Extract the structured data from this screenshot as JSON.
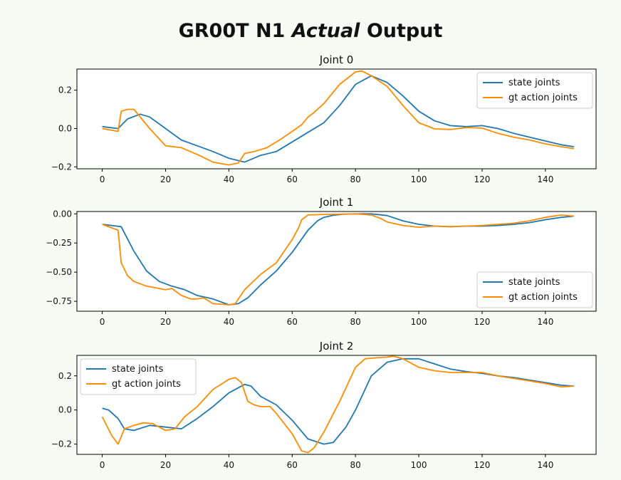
{
  "figure": {
    "title_pre": "GR00T N1 ",
    "title_ital": "Actual",
    "title_post": " Output"
  },
  "colors": {
    "state": "#1f77b4",
    "gt": "#ff8c00"
  },
  "chart_data": [
    {
      "type": "line",
      "title": "Joint 0",
      "xlim": [
        -8,
        156
      ],
      "ylim": [
        -0.21,
        0.31
      ],
      "xticks": [
        0,
        20,
        40,
        60,
        80,
        100,
        120,
        140
      ],
      "yticks": [
        0.2,
        0.0,
        -0.2
      ],
      "ytick_labels": [
        "0.2",
        "0.0",
        "−0.2"
      ],
      "legend": "top-right",
      "series": [
        {
          "name": "state joints",
          "x": [
            0,
            5,
            8,
            12,
            15,
            20,
            25,
            30,
            35,
            40,
            45,
            50,
            55,
            60,
            65,
            70,
            75,
            80,
            85,
            90,
            95,
            100,
            105,
            110,
            115,
            120,
            125,
            130,
            135,
            140,
            145,
            149
          ],
          "values": [
            0.01,
            0.0,
            0.05,
            0.075,
            0.06,
            0.0,
            -0.06,
            -0.09,
            -0.12,
            -0.155,
            -0.175,
            -0.14,
            -0.12,
            -0.07,
            -0.02,
            0.03,
            0.12,
            0.23,
            0.275,
            0.24,
            0.17,
            0.09,
            0.04,
            0.015,
            0.01,
            0.015,
            0.0,
            -0.025,
            -0.045,
            -0.065,
            -0.085,
            -0.095
          ]
        },
        {
          "name": "gt action joints",
          "x": [
            0,
            5,
            6,
            8,
            10,
            15,
            20,
            25,
            30,
            35,
            40,
            43,
            45,
            48,
            52,
            56,
            60,
            63,
            65,
            67,
            70,
            75,
            80,
            82,
            85,
            90,
            95,
            100,
            105,
            110,
            115,
            120,
            125,
            130,
            135,
            140,
            145,
            149
          ],
          "values": [
            0.0,
            -0.015,
            0.09,
            0.1,
            0.1,
            0.0,
            -0.09,
            -0.1,
            -0.135,
            -0.175,
            -0.19,
            -0.18,
            -0.13,
            -0.12,
            -0.1,
            -0.06,
            -0.015,
            0.02,
            0.06,
            0.085,
            0.13,
            0.23,
            0.295,
            0.3,
            0.275,
            0.22,
            0.12,
            0.03,
            -0.002,
            -0.005,
            0.005,
            0.002,
            -0.025,
            -0.045,
            -0.06,
            -0.08,
            -0.095,
            -0.105
          ]
        }
      ]
    },
    {
      "type": "line",
      "title": "Joint 1",
      "xlim": [
        -8,
        156
      ],
      "ylim": [
        -0.835,
        0.02
      ],
      "xticks": [
        0,
        20,
        40,
        60,
        80,
        100,
        120,
        140
      ],
      "yticks": [
        0.0,
        -0.25,
        -0.5,
        -0.75
      ],
      "ytick_labels": [
        "0.00",
        "−0.25",
        "−0.50",
        "−0.75"
      ],
      "legend": "bottom-right",
      "series": [
        {
          "name": "state joints",
          "x": [
            0,
            3,
            6,
            10,
            14,
            18,
            22,
            26,
            30,
            35,
            40,
            43,
            46,
            50,
            55,
            60,
            65,
            68,
            70,
            73,
            76,
            80,
            85,
            90,
            95,
            100,
            105,
            110,
            115,
            120,
            125,
            130,
            135,
            140,
            145,
            149
          ],
          "values": [
            -0.09,
            -0.1,
            -0.11,
            -0.32,
            -0.49,
            -0.58,
            -0.62,
            -0.65,
            -0.7,
            -0.73,
            -0.78,
            -0.77,
            -0.72,
            -0.61,
            -0.49,
            -0.33,
            -0.14,
            -0.06,
            -0.03,
            -0.012,
            -0.004,
            0.0,
            0.0,
            -0.015,
            -0.06,
            -0.09,
            -0.105,
            -0.11,
            -0.105,
            -0.105,
            -0.1,
            -0.09,
            -0.075,
            -0.05,
            -0.03,
            -0.02
          ]
        },
        {
          "name": "gt action joints",
          "x": [
            0,
            4,
            5,
            6,
            8,
            10,
            14,
            18,
            20,
            22,
            25,
            28,
            30,
            32,
            35,
            40,
            42,
            45,
            50,
            55,
            60,
            62,
            63,
            65,
            70,
            80,
            85,
            88,
            90,
            95,
            100,
            105,
            110,
            115,
            120,
            125,
            130,
            135,
            140,
            145,
            149
          ],
          "values": [
            -0.09,
            -0.13,
            -0.14,
            -0.42,
            -0.53,
            -0.58,
            -0.62,
            -0.64,
            -0.65,
            -0.64,
            -0.7,
            -0.73,
            -0.73,
            -0.72,
            -0.77,
            -0.78,
            -0.77,
            -0.65,
            -0.52,
            -0.42,
            -0.22,
            -0.12,
            -0.05,
            -0.01,
            -0.005,
            0.0,
            -0.01,
            -0.04,
            -0.07,
            -0.1,
            -0.115,
            -0.105,
            -0.11,
            -0.105,
            -0.1,
            -0.09,
            -0.08,
            -0.06,
            -0.03,
            -0.01,
            -0.02
          ]
        }
      ]
    },
    {
      "type": "line",
      "title": "Joint 2",
      "xlim": [
        -8,
        156
      ],
      "ylim": [
        -0.26,
        0.32
      ],
      "xticks": [
        0,
        20,
        40,
        60,
        80,
        100,
        120,
        140
      ],
      "yticks": [
        0.2,
        0.0,
        -0.2
      ],
      "ytick_labels": [
        "0.2",
        "0.0",
        "−0.2"
      ],
      "legend": "top-left",
      "series": [
        {
          "name": "state joints",
          "x": [
            0,
            2,
            5,
            7,
            10,
            15,
            20,
            25,
            30,
            35,
            40,
            45,
            47,
            50,
            55,
            60,
            65,
            70,
            73,
            77,
            80,
            85,
            90,
            95,
            100,
            105,
            110,
            115,
            120,
            125,
            130,
            135,
            140,
            145,
            149
          ],
          "values": [
            0.01,
            0.0,
            -0.05,
            -0.11,
            -0.12,
            -0.09,
            -0.1,
            -0.11,
            -0.05,
            0.02,
            0.1,
            0.15,
            0.14,
            0.08,
            0.03,
            -0.06,
            -0.17,
            -0.2,
            -0.19,
            -0.1,
            0.0,
            0.2,
            0.28,
            0.3,
            0.3,
            0.27,
            0.24,
            0.225,
            0.215,
            0.2,
            0.19,
            0.175,
            0.16,
            0.145,
            0.14
          ]
        },
        {
          "name": "gt action joints",
          "x": [
            0,
            3,
            5,
            7,
            10,
            13,
            16,
            20,
            23,
            26,
            30,
            35,
            40,
            42,
            44,
            46,
            48,
            50,
            53,
            55,
            60,
            63,
            65,
            67,
            70,
            75,
            80,
            83,
            86,
            90,
            92,
            95,
            100,
            105,
            110,
            115,
            120,
            125,
            130,
            135,
            140,
            145,
            149
          ],
          "values": [
            -0.04,
            -0.15,
            -0.2,
            -0.11,
            -0.09,
            -0.075,
            -0.08,
            -0.12,
            -0.11,
            -0.04,
            0.02,
            0.12,
            0.18,
            0.19,
            0.16,
            0.05,
            0.03,
            0.02,
            0.02,
            -0.02,
            -0.14,
            -0.24,
            -0.25,
            -0.22,
            -0.13,
            0.05,
            0.25,
            0.3,
            0.305,
            0.31,
            0.315,
            0.3,
            0.25,
            0.23,
            0.22,
            0.22,
            0.22,
            0.2,
            0.185,
            0.17,
            0.155,
            0.135,
            0.14
          ]
        }
      ]
    }
  ]
}
